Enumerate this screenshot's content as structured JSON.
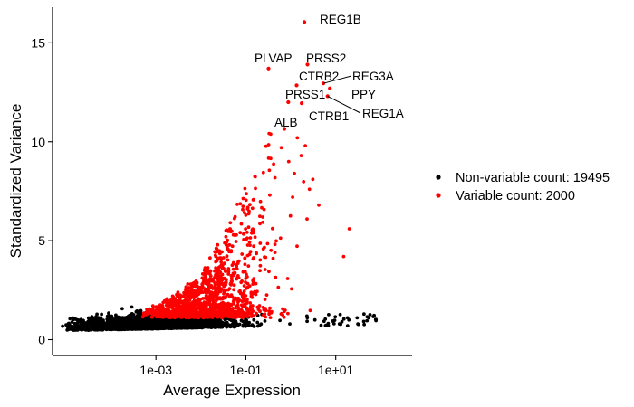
{
  "chart_data": {
    "type": "scatter",
    "xlabel": "Average Expression",
    "ylabel": "Standardized Variance",
    "x_scale": "log10",
    "xlim": [
      5e-06,
      500
    ],
    "ylim": [
      -0.8,
      16.8
    ],
    "x_ticks": [
      {
        "value": 0.001,
        "label": "1e-03"
      },
      {
        "value": 0.1,
        "label": "1e-01"
      },
      {
        "value": 10,
        "label": "1e+01"
      }
    ],
    "y_ticks": [
      {
        "value": 0,
        "label": "0"
      },
      {
        "value": 5,
        "label": "5"
      },
      {
        "value": 10,
        "label": "10"
      },
      {
        "value": 15,
        "label": "15"
      }
    ],
    "grid": false,
    "legend_position": "right",
    "series": [
      {
        "name": "Non-variable count: 19495",
        "color": "#000000",
        "count": 19495
      },
      {
        "name": "Variable count: 2000",
        "color": "#ff0000",
        "count": 2000
      }
    ],
    "labeled_points": [
      {
        "label": "REG1B",
        "x": 2.0,
        "y": 16.05
      },
      {
        "label": "PLVAP",
        "x": 0.32,
        "y": 13.7
      },
      {
        "label": "PRSS2",
        "x": 2.35,
        "y": 13.9
      },
      {
        "label": "CTRB2",
        "x": 1.35,
        "y": 12.85
      },
      {
        "label": "REG3A",
        "x": 5.3,
        "y": 12.95
      },
      {
        "label": "PRSS1",
        "x": 0.88,
        "y": 12.0
      },
      {
        "label": "PPY",
        "x": 7.4,
        "y": 12.7
      },
      {
        "label": "CTRB1",
        "x": 1.75,
        "y": 11.95
      },
      {
        "label": "REG1A",
        "x": 6.6,
        "y": 12.3
      },
      {
        "label": "ALB",
        "x": 0.72,
        "y": 10.65
      }
    ]
  }
}
